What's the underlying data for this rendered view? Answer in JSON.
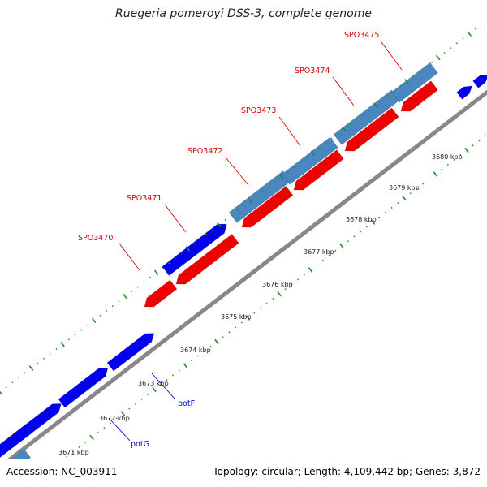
{
  "title": "Ruegeria pomeroyi DSS-3, complete genome",
  "accession": "Accession: NC_003911",
  "summary": "Topology: circular; Length: 4,109,442 bp; Genes: 3,872",
  "colors": {
    "backbone": "#888888",
    "forward_cds": "#0000ee",
    "forward_labeled": "#4a86c0",
    "reverse_cds": "#ee0000",
    "tick": "#228b22",
    "gene_label_red": "#dd0000",
    "gene_label_blue": "#0000cc"
  },
  "kbp_labels": [
    "3671 kbp",
    "3672 kbp",
    "3673 kbp",
    "3674 kbp",
    "3675 kbp",
    "3676 kbp",
    "3677 kbp",
    "3678 kbp",
    "3679 kbp",
    "3680 kbp"
  ],
  "gene_labels": [
    {
      "text": "SPO3470",
      "color": "red"
    },
    {
      "text": "SPO3471",
      "color": "red"
    },
    {
      "text": "SPO3472",
      "color": "red"
    },
    {
      "text": "SPO3473",
      "color": "red"
    },
    {
      "text": "SPO3474",
      "color": "red"
    },
    {
      "text": "SPO3475",
      "color": "red"
    },
    {
      "text": "potF",
      "color": "blue"
    },
    {
      "text": "potG",
      "color": "blue"
    }
  ]
}
